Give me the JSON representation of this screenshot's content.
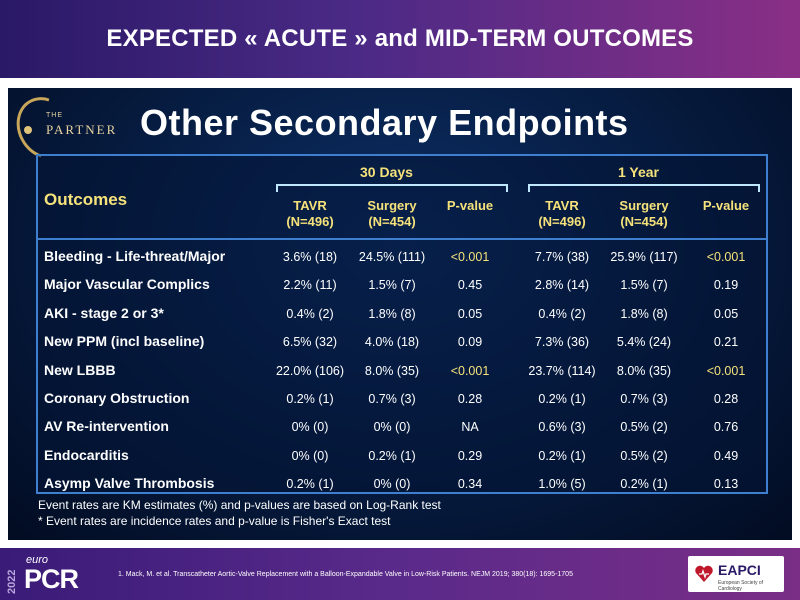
{
  "header": {
    "title": "EXPECTED « ACUTE » and MID-TERM OUTCOMES"
  },
  "slide": {
    "logo_the": "THE",
    "logo_partner": "PARTNER",
    "title": "Other Secondary Endpoints",
    "table": {
      "group_30d": "30 Days",
      "group_1y": "1 Year",
      "outcomes_header": "Outcomes",
      "col_heads": [
        "TAVR\n(N=496)",
        "Surgery\n(N=454)",
        "P-value",
        "TAVR\n(N=496)",
        "Surgery\n(N=454)",
        "P-value"
      ],
      "rows": [
        {
          "label": "Bleeding - Life-threat/Major",
          "values": [
            "3.6% (18)",
            "24.5% (111)",
            "<0.001",
            "7.7% (38)",
            "25.9% (117)",
            "<0.001"
          ]
        },
        {
          "label": "Major Vascular  Complics",
          "values": [
            "2.2% (11)",
            "1.5% (7)",
            "0.45",
            "2.8% (14)",
            "1.5% (7)",
            "0.19"
          ]
        },
        {
          "label": "AKI - stage 2 or 3*",
          "values": [
            "0.4% (2)",
            "1.8% (8)",
            "0.05",
            "0.4% (2)",
            "1.8% (8)",
            "0.05"
          ]
        },
        {
          "label": "New PPM (incl baseline)",
          "values": [
            "6.5% (32)",
            "4.0% (18)",
            "0.09",
            "7.3% (36)",
            "5.4% (24)",
            "0.21"
          ]
        },
        {
          "label": "New LBBB",
          "values": [
            "22.0% (106)",
            "8.0% (35)",
            "<0.001",
            "23.7% (114)",
            "8.0% (35)",
            "<0.001"
          ]
        },
        {
          "label": "Coronary Obstruction",
          "values": [
            "0.2% (1)",
            "0.7% (3)",
            "0.28",
            "0.2% (1)",
            "0.7% (3)",
            "0.28"
          ]
        },
        {
          "label": "AV Re-intervention",
          "values": [
            "0% (0)",
            "0% (0)",
            "NA",
            "0.6% (3)",
            "0.5% (2)",
            "0.76"
          ]
        },
        {
          "label": "Endocarditis",
          "values": [
            "0% (0)",
            "0.2% (1)",
            "0.29",
            "0.2% (1)",
            "0.5% (2)",
            "0.49"
          ]
        },
        {
          "label": "Asymp Valve Thrombosis",
          "values": [
            "0.2% (1)",
            "0% (0)",
            "0.34",
            "1.0% (5)",
            "0.2% (1)",
            "0.13"
          ]
        }
      ]
    },
    "footnotes": [
      "Event rates are KM estimates (%) and p-values are based on Log-Rank test",
      "* Event rates are incidence rates and p-value is Fisher's Exact test"
    ]
  },
  "footer": {
    "year": "2022",
    "euro": "euro",
    "pcr": "PCR",
    "reference": "1.      Mack, M. et al. Transcatheter Aortic-Valve Replacement with a Balloon-Expandable Valve in Low-Risk Patients. NEJM 2019; 380(18): 1695-1705",
    "eapci": "EAPCI",
    "eapci_sub": "European Society of Cardiology"
  },
  "colors": {
    "header_gradient": [
      "#2a1966",
      "#8a2f86"
    ],
    "accent_yellow": "#f6e27a",
    "table_border": "#3f7fd0",
    "slide_bg": "#061b3f"
  }
}
